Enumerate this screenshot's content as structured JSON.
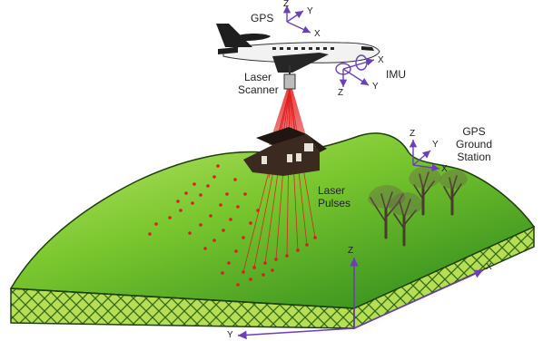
{
  "diagram": {
    "labels": {
      "gps": "GPS",
      "imu": "IMU",
      "laser_scanner": [
        "Laser",
        "Scanner"
      ],
      "laser_pulses": [
        "Laser",
        "Pulses"
      ],
      "gps_ground_station": [
        "GPS",
        "Ground",
        "Station"
      ]
    },
    "axes": {
      "gps_frame": {
        "x": "X",
        "y": "Y",
        "z": "Z"
      },
      "imu_frame": {
        "x": "X",
        "y": "Y",
        "z": "Z"
      },
      "ground_station_frame": {
        "x": "X",
        "y": "Y",
        "z": "Z"
      },
      "world_frame": {
        "x": "X",
        "y": "Y",
        "z": "Z"
      }
    },
    "colors": {
      "terrain_light": "#8ed63a",
      "terrain_dark": "#3a8c1e",
      "soil_pattern": "#a8d94a",
      "soil_lines": "#2f6a14",
      "laser": "#d81e1e",
      "axis": "#6a3fb8",
      "aircraft_body": "#f2f2f2",
      "aircraft_dark": "#1e1e1e",
      "house": "#3a2a20",
      "tree": "#4a3a30"
    }
  }
}
